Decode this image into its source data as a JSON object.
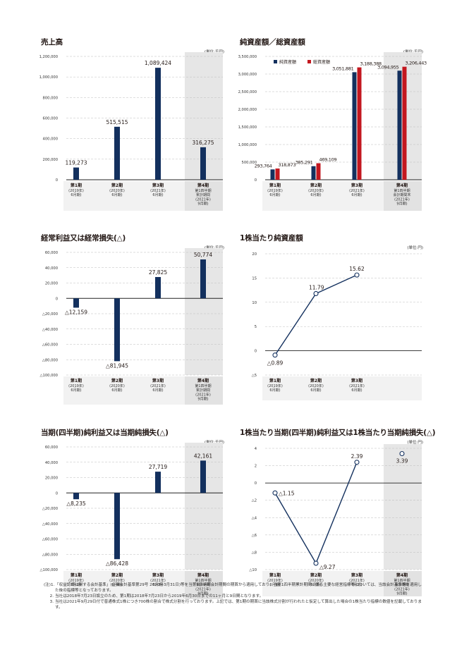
{
  "colors": {
    "navy": "#13305e",
    "red": "#c3171f",
    "shade": "#e6e6e6",
    "grid": "#bdbdbd",
    "axis": "#222222"
  },
  "unit_label": "(単位:千円)",
  "unit_label_yen": "(単位:円)",
  "period_labels": [
    {
      "main": "第1期",
      "sub": [
        "(2019年)",
        "6月期)"
      ]
    },
    {
      "main": "第2期",
      "sub": [
        "(2020年)",
        "6月期)"
      ]
    },
    {
      "main": "第3期",
      "sub": [
        "(2021年)",
        "6月期)"
      ]
    },
    {
      "main": "第4期",
      "sub": [
        "第1四半期",
        "累計期間",
        "(2021年)",
        "9月期)"
      ]
    }
  ],
  "period_labels_nav": [
    {
      "main": "第1期",
      "sub": [
        "(2019年)",
        "6月期)"
      ]
    },
    {
      "main": "第2期",
      "sub": [
        "(2020年)",
        "6月期)"
      ]
    },
    {
      "main": "第3期",
      "sub": [
        "(2021年)",
        "6月期)"
      ]
    },
    {
      "main": "第4期",
      "sub": [
        "第1四半期",
        "会計期間末",
        "(2021年)",
        "9月期)"
      ]
    }
  ],
  "chart_data": [
    {
      "type": "bar",
      "title": "売上高",
      "unit": "(単位:千円)",
      "categories": [
        "第1期",
        "第2期",
        "第3期",
        "第4期"
      ],
      "values": [
        119273,
        515515,
        1089424,
        316275
      ],
      "value_labels": [
        "119,273",
        "515,515",
        "1,089,424",
        "316,275"
      ],
      "yticks": [
        0,
        200000,
        400000,
        600000,
        800000,
        1000000,
        1200000
      ],
      "ytick_labels": [
        "0",
        "200,000",
        "400,000",
        "600,000",
        "800,000",
        "1,000,000",
        "1,200,000"
      ],
      "ylim": [
        0,
        1200000
      ],
      "shaded_category": 3
    },
    {
      "type": "bar",
      "title": "純資産額／総資産額",
      "unit": "(単位:千円)",
      "categories": [
        "第1期",
        "第2期",
        "第3期",
        "第4期"
      ],
      "legend": [
        "純資産額",
        "総資産額"
      ],
      "series": [
        {
          "name": "純資産額",
          "values": [
            293764,
            385291,
            3051881,
            3094955
          ],
          "labels": [
            "293,764",
            "385,291",
            "3,051,881",
            "3,094,955"
          ]
        },
        {
          "name": "総資産額",
          "values": [
            318873,
            469109,
            3188388,
            3206443
          ],
          "labels": [
            "318,873",
            "469,109",
            "3,188,388",
            "3,206,443"
          ]
        }
      ],
      "yticks": [
        0,
        500000,
        1000000,
        1500000,
        2000000,
        2500000,
        3000000,
        3500000
      ],
      "ytick_labels": [
        "0",
        "500,000",
        "1,000,000",
        "1,500,000",
        "2,000,000",
        "2,500,000",
        "3,000,000",
        "3,500,000"
      ],
      "ylim": [
        0,
        3500000
      ],
      "shaded_category": 3
    },
    {
      "type": "bar",
      "title": "経常利益又は経常損失(△)",
      "unit": "(単位:千円)",
      "categories": [
        "第1期",
        "第2期",
        "第3期",
        "第4期"
      ],
      "values": [
        -12159,
        -81945,
        27825,
        50774
      ],
      "value_labels": [
        "△12,159",
        "△81,945",
        "27,825",
        "50,774"
      ],
      "yticks": [
        -100000,
        -80000,
        -60000,
        -40000,
        -20000,
        0,
        20000,
        40000,
        60000
      ],
      "ytick_labels": [
        "△100,000",
        "△80,000",
        "△60,000",
        "△40,000",
        "△20,000",
        "0",
        "20,000",
        "40,000",
        "60,000"
      ],
      "ylim": [
        -100000,
        60000
      ],
      "shaded_category": 3
    },
    {
      "type": "line",
      "title": "1株当たり純資産額",
      "unit": "(単位:円)",
      "categories": [
        "第1期",
        "第2期",
        "第3期"
      ],
      "values": [
        -0.89,
        11.79,
        15.62
      ],
      "value_labels": [
        "△0.89",
        "11.79",
        "15.62"
      ],
      "yticks": [
        -5,
        0,
        5,
        10,
        15,
        20
      ],
      "ytick_labels": [
        "△5",
        "0",
        "5",
        "10",
        "15",
        "20"
      ],
      "ylim": [
        -5,
        20
      ]
    },
    {
      "type": "bar",
      "title": "当期(四半期)純利益又は当期純損失(△)",
      "unit": "(単位:千円)",
      "categories": [
        "第1期",
        "第2期",
        "第3期",
        "第4期"
      ],
      "values": [
        -8235,
        -86428,
        27719,
        42161
      ],
      "value_labels": [
        "△8,235",
        "△86,428",
        "27,719",
        "42,161"
      ],
      "yticks": [
        -100000,
        -80000,
        -60000,
        -40000,
        -20000,
        0,
        20000,
        40000,
        60000
      ],
      "ytick_labels": [
        "△100,000",
        "△80,000",
        "△60,000",
        "△40,000",
        "△20,000",
        "0",
        "20,000",
        "40,000",
        "60,000"
      ],
      "ylim": [
        -100000,
        60000
      ],
      "shaded_category": 3
    },
    {
      "type": "line",
      "title": "1株当たり当期(四半期)純利益又は1株当たり当期純損失(△)",
      "unit": "(単位:円)",
      "categories": [
        "第1期",
        "第2期",
        "第3期",
        "第4期"
      ],
      "values": [
        -1.15,
        -9.27,
        2.39,
        3.39
      ],
      "value_labels": [
        "△1.15",
        "△9.27",
        "2.39",
        "3.39"
      ],
      "connected": [
        true,
        true,
        true,
        false
      ],
      "yticks": [
        -10,
        -8,
        -6,
        -4,
        -2,
        0,
        2,
        4
      ],
      "ytick_labels": [
        "△10",
        "△8",
        "△6",
        "△4",
        "△2",
        "0",
        "2",
        "4"
      ],
      "ylim": [
        -10,
        4
      ],
      "shaded_category": 3
    }
  ],
  "notes": {
    "lead": "(注)",
    "items": [
      {
        "mark": "1.",
        "text": "「収益認識に関する会計基準」(企業会計基準第29号 2020年3月31日)等を当第1四半期会計期間の期首から適用しており、当第1四半期累計期間に係る主要な経営指標等については、当該会計基準等を適用した後の指標等となっております。"
      },
      {
        "mark": "2.",
        "text": "当社は2018年7月23日設立のため、第1期は2018年7月23日から2019年6月30日までの11ヶ月と9日間となります。"
      },
      {
        "mark": "3.",
        "text": "当社は2021年9月29日付で普通株式1株につき700株の割合で株式分割を行っております。上記では、第1期の期首に当該株式分割が行われたと仮定して算出した場合の1株当たり指標の数値を記載しております。"
      }
    ]
  }
}
